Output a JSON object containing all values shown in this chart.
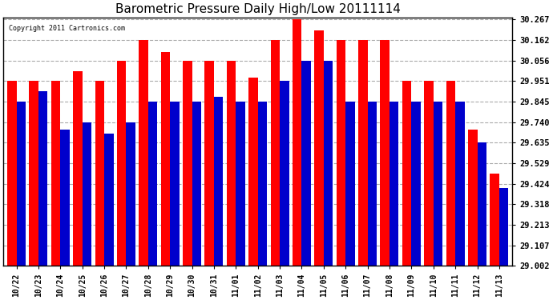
{
  "title": "Barometric Pressure Daily High/Low 20111114",
  "copyright": "Copyright 2011 Cartronics.com",
  "categories": [
    "10/22",
    "10/23",
    "10/24",
    "10/25",
    "10/26",
    "10/27",
    "10/28",
    "10/29",
    "10/30",
    "10/31",
    "11/01",
    "11/02",
    "11/03",
    "11/04",
    "11/05",
    "11/06",
    "11/07",
    "11/08",
    "11/09",
    "11/10",
    "11/11",
    "11/12",
    "11/13"
  ],
  "highs": [
    29.951,
    29.951,
    29.951,
    30.0,
    29.951,
    30.056,
    30.162,
    30.1,
    30.056,
    30.056,
    30.056,
    29.97,
    30.162,
    30.267,
    30.21,
    30.162,
    30.162,
    30.162,
    29.951,
    29.951,
    29.951,
    29.7,
    29.475
  ],
  "lows": [
    29.845,
    29.9,
    29.7,
    29.74,
    29.68,
    29.74,
    29.845,
    29.845,
    29.845,
    29.87,
    29.845,
    29.845,
    29.95,
    30.05,
    30.05,
    29.845,
    29.845,
    29.845,
    29.845,
    29.845,
    29.845,
    29.635,
    29.4
  ],
  "high_color": "#ff0000",
  "low_color": "#0000cc",
  "background_color": "#ffffff",
  "plot_bg_color": "#ffffff",
  "grid_color": "#aaaaaa",
  "yticks": [
    29.002,
    29.107,
    29.213,
    29.318,
    29.424,
    29.529,
    29.635,
    29.74,
    29.845,
    29.951,
    30.056,
    30.162,
    30.267
  ],
  "ymin": 29.002,
  "ymax": 30.267,
  "bar_width": 0.42
}
